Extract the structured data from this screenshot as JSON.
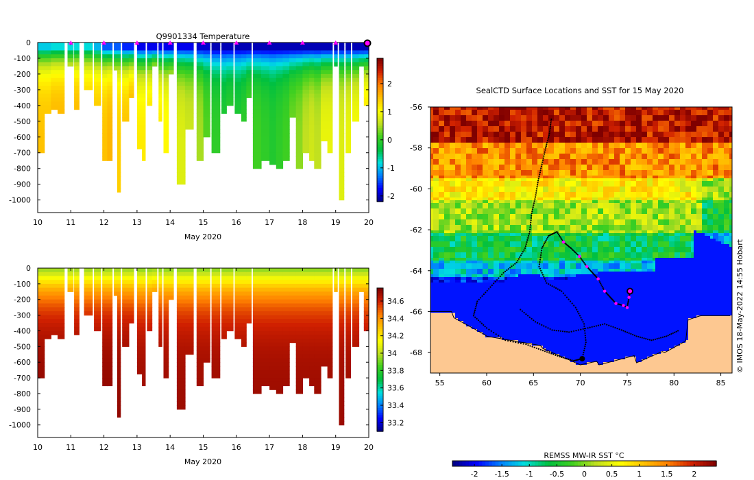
{
  "colors": {
    "temperature_ramp": [
      "#00007f",
      "#0000ff",
      "#007fff",
      "#00dfdf",
      "#00c040",
      "#40d020",
      "#c0e020",
      "#ffff00",
      "#ffc000",
      "#ff7f00",
      "#d02000",
      "#7f0000"
    ],
    "salinity_ramp": [
      "#00007f",
      "#0000ff",
      "#007fff",
      "#00dfdf",
      "#00c040",
      "#40d020",
      "#c0e020",
      "#ffff00",
      "#ffc000",
      "#ff7f00",
      "#d02000",
      "#7f0000"
    ],
    "land": "#fdc891",
    "track": "#000000",
    "profile_marker": "#ff00ff"
  },
  "watermark": "© IMOS 18-May-2022 14:55 Hobart",
  "chart_data": [
    {
      "id": "temperature-section",
      "type": "heatmap",
      "title": "Q9901334  Temperature",
      "xlabel": "May 2020",
      "ylabel": "",
      "x_ticks": [
        10,
        11,
        12,
        13,
        14,
        15,
        16,
        17,
        18,
        19,
        20
      ],
      "y_ticks": [
        0,
        -100,
        -200,
        -300,
        -400,
        -500,
        -600,
        -700,
        -800,
        -900,
        -1000
      ],
      "xlim": [
        10,
        20
      ],
      "ylim": [
        -1080,
        0
      ],
      "colorbar": {
        "ticks": [
          2,
          1,
          0,
          -1,
          -2
        ],
        "range": [
          -2.2,
          2.9
        ]
      },
      "profile_markers": [
        11,
        12,
        13,
        14,
        15,
        16,
        17,
        18,
        19,
        20
      ],
      "profiles": [
        {
          "t": 10.0,
          "w": 0.2,
          "depth": 680,
          "surface": -0.9,
          "deep": 1.5
        },
        {
          "t": 10.2,
          "w": 0.2,
          "depth": 430,
          "surface": -0.9,
          "deep": 1.5
        },
        {
          "t": 10.4,
          "w": 0.2,
          "depth": 410,
          "surface": -0.8,
          "deep": 1.6
        },
        {
          "t": 10.6,
          "w": 0.2,
          "depth": 430,
          "surface": -0.8,
          "deep": 1.6
        },
        {
          "t": 10.9,
          "w": 0.17,
          "depth": 140,
          "surface": -0.8,
          "deep": 1.5
        },
        {
          "t": 11.1,
          "w": 0.15,
          "depth": 410,
          "surface": -0.8,
          "deep": 1.6
        },
        {
          "t": 11.4,
          "w": 0.25,
          "depth": 300,
          "surface": -0.8,
          "deep": 1.5
        },
        {
          "t": 11.7,
          "w": 0.2,
          "depth": 400,
          "surface": -1.0,
          "deep": 1.5
        },
        {
          "t": 11.95,
          "w": 0.15,
          "depth": 750,
          "surface": -1.4,
          "deep": 1.5
        },
        {
          "t": 12.1,
          "w": 0.15,
          "depth": 750,
          "surface": -1.4,
          "deep": 1.6
        },
        {
          "t": 12.3,
          "w": 0.1,
          "depth": 160,
          "surface": -1.4,
          "deep": 1.4
        },
        {
          "t": 12.4,
          "w": 0.1,
          "depth": 930,
          "surface": -1.4,
          "deep": 1.4
        },
        {
          "t": 12.55,
          "w": 0.2,
          "depth": 500,
          "surface": -1.6,
          "deep": 1.5
        },
        {
          "t": 12.75,
          "w": 0.15,
          "depth": 330,
          "surface": -1.6,
          "deep": 1.7
        },
        {
          "t": 13.0,
          "w": 0.15,
          "depth": 670,
          "surface": -1.8,
          "deep": 1.2
        },
        {
          "t": 13.15,
          "w": 0.1,
          "depth": 730,
          "surface": -1.8,
          "deep": 1.2
        },
        {
          "t": 13.3,
          "w": 0.15,
          "depth": 400,
          "surface": -1.8,
          "deep": 1.3
        },
        {
          "t": 13.45,
          "w": 0.15,
          "depth": 150,
          "surface": -1.8,
          "deep": 1.8
        },
        {
          "t": 13.65,
          "w": 0.1,
          "depth": 500,
          "surface": -1.8,
          "deep": 1.2
        },
        {
          "t": 13.8,
          "w": 0.15,
          "depth": 700,
          "surface": -1.8,
          "deep": 1.1
        },
        {
          "t": 13.95,
          "w": 0.15,
          "depth": 180,
          "surface": -1.8,
          "deep": 1.2
        },
        {
          "t": 14.2,
          "w": 0.25,
          "depth": 900,
          "surface": -1.8,
          "deep": 0.8
        },
        {
          "t": 14.45,
          "w": 0.25,
          "depth": 550,
          "surface": -1.8,
          "deep": 0.7
        },
        {
          "t": 14.8,
          "w": 0.2,
          "depth": 750,
          "surface": -1.9,
          "deep": 0.5
        },
        {
          "t": 15.0,
          "w": 0.2,
          "depth": 600,
          "surface": -1.9,
          "deep": 0.2
        },
        {
          "t": 15.25,
          "w": 0.25,
          "depth": 700,
          "surface": -2.0,
          "deep": 0.0
        },
        {
          "t": 15.55,
          "w": 0.15,
          "depth": 450,
          "surface": -2.0,
          "deep": -0.1
        },
        {
          "t": 15.7,
          "w": 0.2,
          "depth": 380,
          "surface": -2.0,
          "deep": 0.0
        },
        {
          "t": 15.95,
          "w": 0.2,
          "depth": 430,
          "surface": -2.0,
          "deep": -0.1
        },
        {
          "t": 16.15,
          "w": 0.15,
          "depth": 500,
          "surface": -2.0,
          "deep": 0.0
        },
        {
          "t": 16.3,
          "w": 0.15,
          "depth": 350,
          "surface": -2.0,
          "deep": 0.2
        },
        {
          "t": 16.5,
          "w": 0.25,
          "depth": 800,
          "surface": -2.0,
          "deep": 0.1
        },
        {
          "t": 16.75,
          "w": 0.25,
          "depth": 740,
          "surface": -2.0,
          "deep": 0.0
        },
        {
          "t": 17.0,
          "w": 0.2,
          "depth": 760,
          "surface": -2.0,
          "deep": -0.1
        },
        {
          "t": 17.2,
          "w": 0.2,
          "depth": 790,
          "surface": -2.0,
          "deep": 0.0
        },
        {
          "t": 17.4,
          "w": 0.2,
          "depth": 750,
          "surface": -2.0,
          "deep": 0.1
        },
        {
          "t": 17.6,
          "w": 0.2,
          "depth": 460,
          "surface": -2.0,
          "deep": 0.3
        },
        {
          "t": 17.8,
          "w": 0.2,
          "depth": 800,
          "surface": -2.0,
          "deep": 0.4
        },
        {
          "t": 18.0,
          "w": 0.2,
          "depth": 680,
          "surface": -2.0,
          "deep": 0.6
        },
        {
          "t": 18.2,
          "w": 0.15,
          "depth": 740,
          "surface": -2.0,
          "deep": 0.7
        },
        {
          "t": 18.35,
          "w": 0.2,
          "depth": 780,
          "surface": -2.0,
          "deep": 0.6
        },
        {
          "t": 18.55,
          "w": 0.2,
          "depth": 620,
          "surface": -2.0,
          "deep": 0.9
        },
        {
          "t": 18.75,
          "w": 0.15,
          "depth": 700,
          "surface": -2.0,
          "deep": 0.9
        },
        {
          "t": 18.95,
          "w": 0.1,
          "depth": 130,
          "surface": -2.0,
          "deep": 0.8
        },
        {
          "t": 19.1,
          "w": 0.15,
          "depth": 990,
          "surface": -2.0,
          "deep": 0.8
        },
        {
          "t": 19.3,
          "w": 0.15,
          "depth": 700,
          "surface": -2.0,
          "deep": 0.9
        },
        {
          "t": 19.5,
          "w": 0.2,
          "depth": 500,
          "surface": -2.0,
          "deep": 1.0
        },
        {
          "t": 19.7,
          "w": 0.15,
          "depth": 150,
          "surface": -2.0,
          "deep": 1.2
        },
        {
          "t": 19.85,
          "w": 0.2,
          "depth": 400,
          "surface": -2.0,
          "deep": 1.3
        }
      ]
    },
    {
      "id": "salinity-section",
      "type": "heatmap",
      "title": "",
      "xlabel": "May 2020",
      "ylabel": "",
      "x_ticks": [
        10,
        11,
        12,
        13,
        14,
        15,
        16,
        17,
        18,
        19,
        20
      ],
      "y_ticks": [
        0,
        -100,
        -200,
        -300,
        -400,
        -500,
        -600,
        -700,
        -800,
        -900,
        -1000
      ],
      "xlim": [
        10,
        20
      ],
      "ylim": [
        -1080,
        0
      ],
      "colorbar": {
        "ticks": [
          34.6,
          34.4,
          34.2,
          34,
          33.8,
          33.6,
          33.4,
          33.2
        ],
        "range": [
          33.1,
          34.75
        ]
      },
      "surface_value": 33.95,
      "deep_value": 34.7
    },
    {
      "id": "sst-map",
      "type": "heatmap",
      "title": "SealCTD Surface Locations and SST for 15 May 2020",
      "xlabel": "",
      "ylabel": "",
      "x_ticks": [
        55,
        60,
        65,
        70,
        75,
        80,
        85
      ],
      "y_ticks": [
        -56,
        -58,
        -60,
        -62,
        -64,
        -66,
        -68
      ],
      "xlim": [
        54,
        86.2
      ],
      "ylim": [
        -69,
        -56
      ],
      "colorbar": {
        "label": "REMSS MW-IR SST °C",
        "ticks": [
          -2,
          -1.5,
          -1,
          -0.5,
          0,
          0.5,
          1,
          1.5,
          2
        ],
        "range": [
          -2.4,
          2.4
        ]
      },
      "sst_bands": [
        {
          "lat_from": -56,
          "lat_to": -57.7,
          "value": 2.1
        },
        {
          "lat_from": -57.7,
          "lat_to": -59.5,
          "value": 1.4
        },
        {
          "lat_from": -59.5,
          "lat_to": -60.5,
          "value": 0.7
        },
        {
          "lat_from": -60.5,
          "lat_to": -62.2,
          "value": 0.1
        },
        {
          "lat_from": -62.2,
          "lat_to": -63.5,
          "value": -0.6
        },
        {
          "lat_from": -63.5,
          "lat_to": -64.3,
          "value": -1.2
        },
        {
          "lat_from": -64.3,
          "lat_to": -69,
          "value": -1.9
        }
      ],
      "current_location": {
        "lon": 75.3,
        "lat": -65.0
      },
      "daily_positions": [
        {
          "lon": 68.2,
          "lat": -62.6
        },
        {
          "lon": 69.9,
          "lat": -63.3
        },
        {
          "lon": 70.7,
          "lat": -63.8
        },
        {
          "lon": 71.9,
          "lat": -64.4
        },
        {
          "lon": 72.6,
          "lat": -65.0
        },
        {
          "lon": 73.8,
          "lat": -65.6
        },
        {
          "lon": 74.6,
          "lat": -65.7
        },
        {
          "lon": 75.0,
          "lat": -65.8
        },
        {
          "lon": 75.2,
          "lat": -65.3
        }
      ],
      "deployment_site": {
        "lon": 70.2,
        "lat": -68.3
      },
      "track": [
        {
          "lon": 66.9,
          "lat": -56.6
        },
        {
          "lon": 66.7,
          "lat": -57.3
        },
        {
          "lon": 66.3,
          "lat": -58.0
        },
        {
          "lon": 65.9,
          "lat": -58.8
        },
        {
          "lon": 65.5,
          "lat": -59.6
        },
        {
          "lon": 65.2,
          "lat": -60.4
        },
        {
          "lon": 64.8,
          "lat": -61.2
        },
        {
          "lon": 64.6,
          "lat": -62.1
        },
        {
          "lon": 64.1,
          "lat": -62.9
        },
        {
          "lon": 63.2,
          "lat": -63.6
        },
        {
          "lon": 61.8,
          "lat": -64.1
        },
        {
          "lon": 60.4,
          "lat": -64.8
        },
        {
          "lon": 59.0,
          "lat": -65.5
        },
        {
          "lon": 58.6,
          "lat": -66.2
        },
        {
          "lon": 60.0,
          "lat": -66.8
        },
        {
          "lon": 62.0,
          "lat": -67.4
        },
        {
          "lon": 64.2,
          "lat": -67.6
        },
        {
          "lon": 66.0,
          "lat": -67.9
        },
        {
          "lon": 67.8,
          "lat": -68.2
        },
        {
          "lon": 69.3,
          "lat": -68.4
        },
        {
          "lon": 70.2,
          "lat": -68.3
        },
        {
          "lon": 70.6,
          "lat": -67.5
        },
        {
          "lon": 70.4,
          "lat": -66.6
        },
        {
          "lon": 69.5,
          "lat": -65.8
        },
        {
          "lon": 68.0,
          "lat": -65.0
        },
        {
          "lon": 66.4,
          "lat": -64.6
        },
        {
          "lon": 65.6,
          "lat": -63.8
        },
        {
          "lon": 65.9,
          "lat": -62.9
        },
        {
          "lon": 66.6,
          "lat": -62.3
        },
        {
          "lon": 67.5,
          "lat": -62.1
        },
        {
          "lon": 68.2,
          "lat": -62.6
        },
        {
          "lon": 69.0,
          "lat": -62.9
        },
        {
          "lon": 69.9,
          "lat": -63.3
        },
        {
          "lon": 70.7,
          "lat": -63.8
        },
        {
          "lon": 71.3,
          "lat": -64.1
        },
        {
          "lon": 71.9,
          "lat": -64.4
        },
        {
          "lon": 72.6,
          "lat": -65.0
        },
        {
          "lon": 73.2,
          "lat": -65.3
        },
        {
          "lon": 73.8,
          "lat": -65.6
        },
        {
          "lon": 74.6,
          "lat": -65.7
        },
        {
          "lon": 75.0,
          "lat": -65.8
        },
        {
          "lon": 75.2,
          "lat": -65.3
        },
        {
          "lon": 75.3,
          "lat": -65.0
        }
      ],
      "track_secondary": [
        {
          "lon": 63.6,
          "lat": -65.9
        },
        {
          "lon": 65.2,
          "lat": -66.5
        },
        {
          "lon": 67.0,
          "lat": -66.9
        },
        {
          "lon": 68.8,
          "lat": -67.0
        },
        {
          "lon": 70.8,
          "lat": -66.8
        },
        {
          "lon": 72.6,
          "lat": -66.6
        },
        {
          "lon": 74.4,
          "lat": -66.9
        },
        {
          "lon": 76.0,
          "lat": -67.2
        },
        {
          "lon": 77.6,
          "lat": -67.4
        },
        {
          "lon": 79.2,
          "lat": -67.2
        },
        {
          "lon": 80.6,
          "lat": -66.9
        }
      ]
    }
  ]
}
